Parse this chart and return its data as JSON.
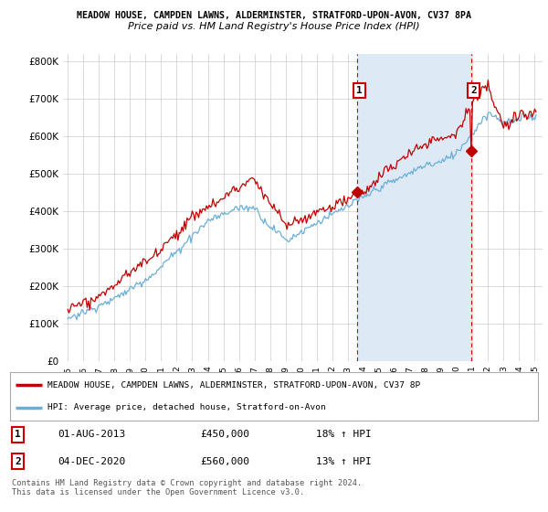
{
  "title1": "MEADOW HOUSE, CAMPDEN LAWNS, ALDERMINSTER, STRATFORD-UPON-AVON, CV37 8PA",
  "title2": "Price paid vs. HM Land Registry's House Price Index (HPI)",
  "ylim": [
    0,
    820000
  ],
  "yticks": [
    0,
    100000,
    200000,
    300000,
    400000,
    500000,
    600000,
    700000,
    800000
  ],
  "ytick_labels": [
    "£0",
    "£100K",
    "£200K",
    "£300K",
    "£400K",
    "£500K",
    "£600K",
    "£700K",
    "£800K"
  ],
  "hpi_fill_color": "#ddeaf6",
  "hpi_line_color": "#6baed6",
  "price_color": "#c00000",
  "bg_color": "#ffffff",
  "grid_color": "#cccccc",
  "sale1_year": 2013.583,
  "sale1_price": 450000,
  "sale1_label": "1",
  "sale2_year": 2020.917,
  "sale2_price": 560000,
  "sale2_label": "2",
  "legend_line1": "MEADOW HOUSE, CAMPDEN LAWNS, ALDERMINSTER, STRATFORD-UPON-AVON, CV37 8P",
  "legend_line2": "HPI: Average price, detached house, Stratford-on-Avon",
  "table_row1_num": "1",
  "table_row1_date": "01-AUG-2013",
  "table_row1_price": "£450,000",
  "table_row1_hpi": "18% ↑ HPI",
  "table_row2_num": "2",
  "table_row2_date": "04-DEC-2020",
  "table_row2_price": "£560,000",
  "table_row2_hpi": "13% ↑ HPI",
  "footnote": "Contains HM Land Registry data © Crown copyright and database right 2024.\nThis data is licensed under the Open Government Licence v3.0."
}
